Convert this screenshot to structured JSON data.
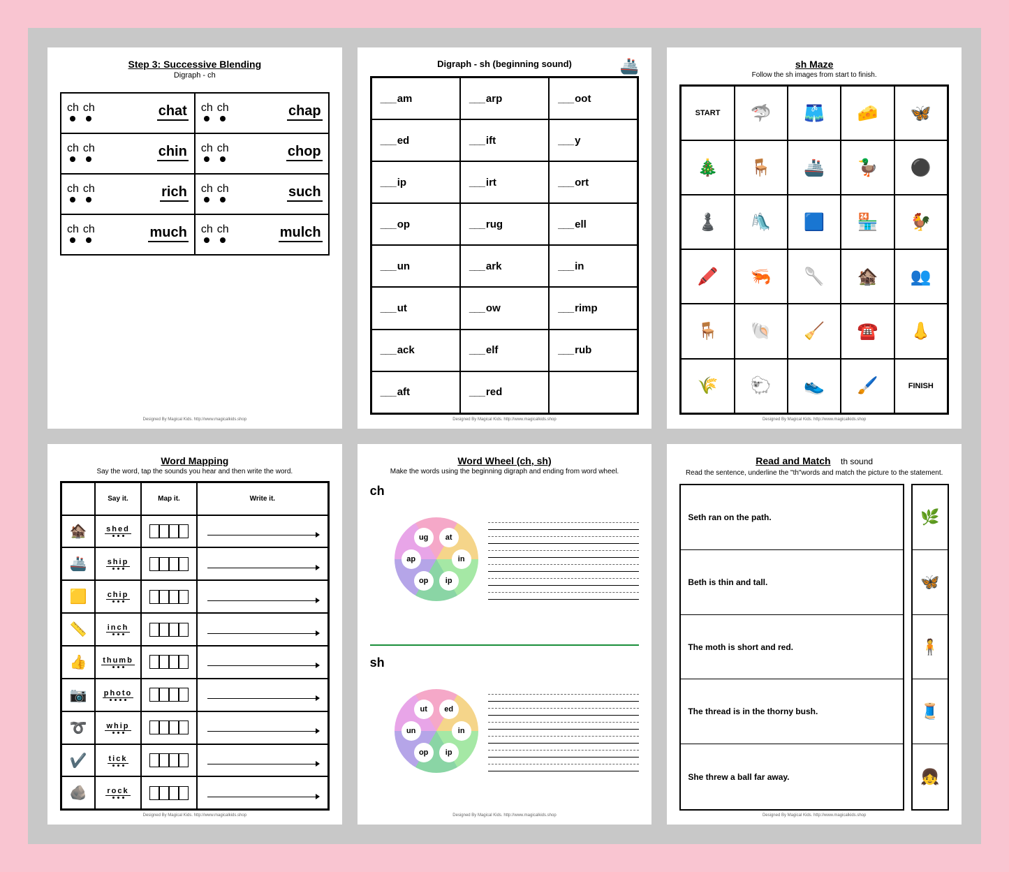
{
  "footer": "Designed By Magical Kids. http://www.magicalkids.shop",
  "sheet1": {
    "title": "Step 3: Successive Blending",
    "subtitle": "Digraph - ch",
    "sound": "ch",
    "words": [
      "chat",
      "chap",
      "chin",
      "chop",
      "rich",
      "such",
      "much",
      "mulch"
    ]
  },
  "sheet2": {
    "title": "Digraph - sh (beginning sound)",
    "icon": "🚢",
    "endings": [
      "am",
      "arp",
      "oot",
      "ed",
      "ift",
      "y",
      "ip",
      "irt",
      "ort",
      "op",
      "rug",
      "ell",
      "un",
      "ark",
      "in",
      "ut",
      "ow",
      "rimp",
      "ack",
      "elf",
      "rub",
      "aft",
      "red",
      ""
    ]
  },
  "sheet3": {
    "title": "sh Maze",
    "subtitle": "Follow the sh images from start to finish.",
    "start": "START",
    "finish": "FINISH",
    "cells": [
      "START",
      "🦈",
      "🩳",
      "🧀",
      "🦋",
      "🎄",
      "🪑",
      "🚢",
      "🦆",
      "⚫",
      "♟️",
      "🛝",
      "🟦",
      "🏪",
      "🐓",
      "🖍️",
      "🦐",
      "🥄",
      "🏚️",
      "👥",
      "🪑",
      "🐚",
      "🧹",
      "☎️",
      "👃",
      "🌾",
      "🐑",
      "👟",
      "🖌️",
      "FINISH"
    ]
  },
  "sheet4": {
    "title": "Word Mapping",
    "subtitle": "Say the word, tap the sounds you hear and then write the word.",
    "headers": [
      "",
      "Say it.",
      "Map it.",
      "Write it."
    ],
    "rows": [
      {
        "icon": "🏚️",
        "word": "shed",
        "dots": 3
      },
      {
        "icon": "🚢",
        "word": "ship",
        "dots": 3
      },
      {
        "icon": "🟨",
        "word": "chip",
        "dots": 3
      },
      {
        "icon": "📏",
        "word": "inch",
        "dots": 3
      },
      {
        "icon": "👍",
        "word": "thumb",
        "dots": 3
      },
      {
        "icon": "📷",
        "word": "photo",
        "dots": 4
      },
      {
        "icon": "➰",
        "word": "whip",
        "dots": 3
      },
      {
        "icon": "✔️",
        "word": "tick",
        "dots": 3
      },
      {
        "icon": "🪨",
        "word": "rock",
        "dots": 3
      }
    ]
  },
  "sheet5": {
    "title": "Word Wheel (ch, sh)",
    "subtitle": "Make the words using the beginning digraph and ending from word wheel.",
    "wheels": [
      {
        "label": "ch",
        "segs": [
          {
            "t": "at",
            "c": "#e8a5e8"
          },
          {
            "t": "in",
            "c": "#f5a8c8"
          },
          {
            "t": "ip",
            "c": "#f5d58a"
          },
          {
            "t": "op",
            "c": "#a5e8a5"
          },
          {
            "t": "ap",
            "c": "#8ad5a5"
          },
          {
            "t": "ug",
            "c": "#b5a5e8"
          }
        ]
      },
      {
        "label": "sh",
        "segs": [
          {
            "t": "ed",
            "c": "#e8a5e8"
          },
          {
            "t": "in",
            "c": "#f5a8c8"
          },
          {
            "t": "ip",
            "c": "#f5d58a"
          },
          {
            "t": "op",
            "c": "#a5e8a5"
          },
          {
            "t": "un",
            "c": "#8ad5a5"
          },
          {
            "t": "ut",
            "c": "#b5a5e8"
          }
        ]
      }
    ]
  },
  "sheet6": {
    "title": "Read and Match",
    "titlesuffix": "th sound",
    "subtitle": "Read the sentence, underline the \"th\"words and match the picture to the statement.",
    "sentences": [
      "Seth ran on the path.",
      "Beth is thin and tall.",
      "The moth is short and red.",
      "The thread is in the thorny bush.",
      "She threw a ball far away."
    ],
    "pics": [
      "🌿",
      "🦋",
      "🧍",
      "🧵",
      "👧"
    ]
  }
}
